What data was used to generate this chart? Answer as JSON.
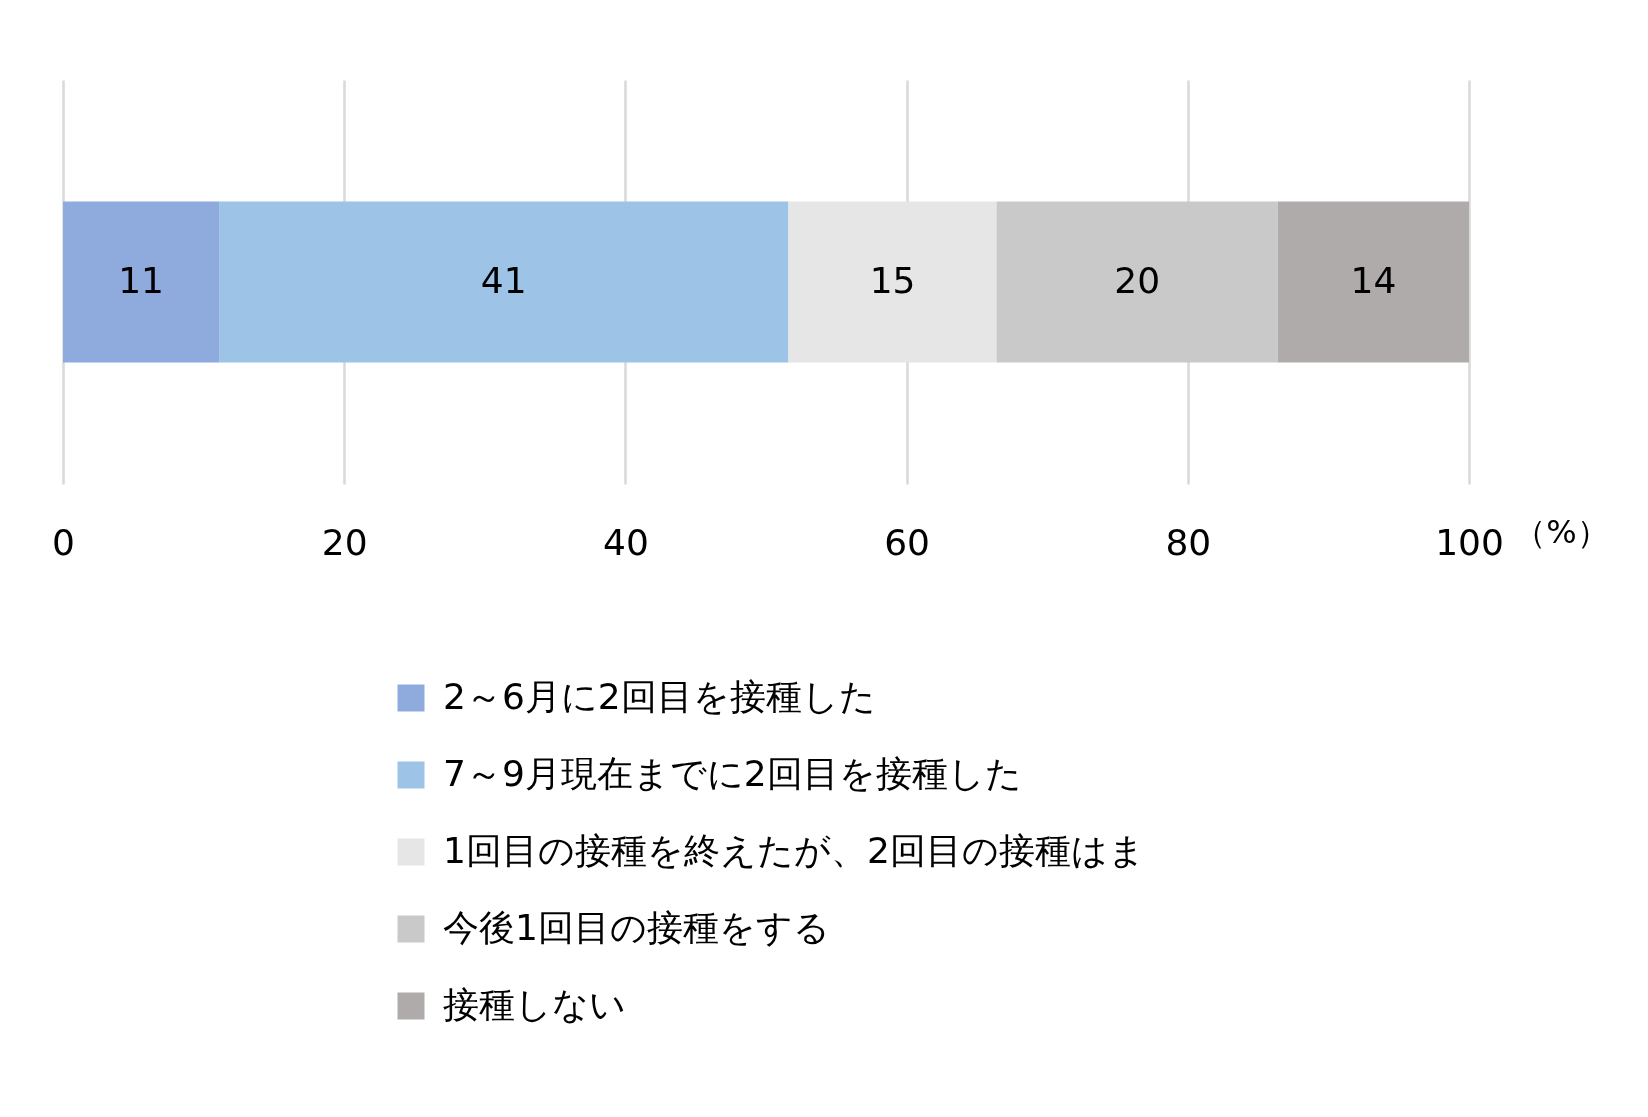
{
  "chart_data": {
    "type": "bar",
    "orientation": "horizontal",
    "stacked": true,
    "categories": [
      null
    ],
    "xlabel": "（%）",
    "xlim": [
      0,
      100
    ],
    "xticks": [
      0,
      20,
      40,
      60,
      80,
      100
    ],
    "grid": "x",
    "legend": "bottom",
    "series": [
      {
        "name": "2～6月に2回目を接種した",
        "color": "#8faadc",
        "values": [
          11.1
        ],
        "value_labels": [
          "11"
        ]
      },
      {
        "name": "7～9月現在までに2回目を接種した",
        "color": "#9dc3e6",
        "values": [
          40.5
        ],
        "value_labels": [
          "41"
        ]
      },
      {
        "name": "1回目の接種を終えたが、2回目の接種はま",
        "color": "#e7e6e6",
        "values": [
          14.8
        ],
        "value_labels": [
          "15"
        ]
      },
      {
        "name": "今後1回目の接種をする",
        "color": "#c9c9c9",
        "values": [
          20.0
        ],
        "value_labels": [
          "20"
        ]
      },
      {
        "name": "接種しない",
        "color": "#afabab",
        "values": [
          13.6
        ],
        "value_labels": [
          "14"
        ]
      }
    ]
  }
}
